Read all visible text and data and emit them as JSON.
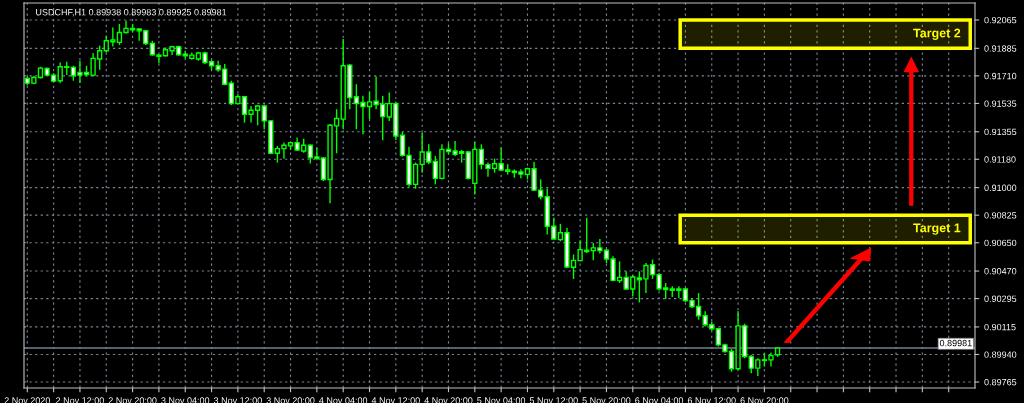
{
  "chart_data": {
    "type": "candlestick",
    "title": "USDCHF,H1 0.89938 0.89983 0.89925 0.89981",
    "color": "#00ff00",
    "grid": true,
    "x": [
      "2020-11-02T04:00",
      "2020-11-02T05:00",
      "2020-11-02T06:00",
      "2020-11-02T07:00",
      "2020-11-02T08:00",
      "2020-11-02T09:00",
      "2020-11-02T10:00",
      "2020-11-02T11:00",
      "2020-11-02T12:00",
      "2020-11-02T13:00",
      "2020-11-02T14:00",
      "2020-11-02T15:00",
      "2020-11-02T16:00",
      "2020-11-02T17:00",
      "2020-11-02T18:00",
      "2020-11-02T19:00",
      "2020-11-02T20:00",
      "2020-11-02T21:00",
      "2020-11-02T22:00",
      "2020-11-02T23:00",
      "2020-11-03T00:00",
      "2020-11-03T01:00",
      "2020-11-03T02:00",
      "2020-11-03T03:00",
      "2020-11-03T04:00",
      "2020-11-03T05:00",
      "2020-11-03T06:00",
      "2020-11-03T07:00",
      "2020-11-03T08:00",
      "2020-11-03T09:00",
      "2020-11-03T10:00",
      "2020-11-03T11:00",
      "2020-11-03T12:00",
      "2020-11-03T13:00",
      "2020-11-03T14:00",
      "2020-11-03T15:00",
      "2020-11-03T16:00",
      "2020-11-03T17:00",
      "2020-11-03T18:00",
      "2020-11-03T19:00",
      "2020-11-03T20:00",
      "2020-11-03T21:00",
      "2020-11-03T22:00",
      "2020-11-03T23:00",
      "2020-11-04T00:00",
      "2020-11-04T01:00",
      "2020-11-04T02:00",
      "2020-11-04T03:00",
      "2020-11-04T04:00",
      "2020-11-04T05:00",
      "2020-11-04T06:00",
      "2020-11-04T07:00",
      "2020-11-04T08:00",
      "2020-11-04T09:00",
      "2020-11-04T10:00",
      "2020-11-04T11:00",
      "2020-11-04T12:00",
      "2020-11-04T13:00",
      "2020-11-04T14:00",
      "2020-11-04T15:00",
      "2020-11-04T16:00",
      "2020-11-04T17:00",
      "2020-11-04T18:00",
      "2020-11-04T19:00",
      "2020-11-04T20:00",
      "2020-11-04T21:00",
      "2020-11-04T22:00",
      "2020-11-04T23:00",
      "2020-11-05T00:00",
      "2020-11-05T01:00",
      "2020-11-05T02:00",
      "2020-11-05T03:00",
      "2020-11-05T04:00",
      "2020-11-05T05:00",
      "2020-11-05T06:00",
      "2020-11-05T07:00",
      "2020-11-05T08:00",
      "2020-11-05T09:00",
      "2020-11-05T10:00",
      "2020-11-05T11:00",
      "2020-11-05T12:00",
      "2020-11-05T13:00",
      "2020-11-05T14:00",
      "2020-11-05T15:00",
      "2020-11-05T16:00",
      "2020-11-05T17:00",
      "2020-11-05T18:00",
      "2020-11-05T19:00",
      "2020-11-05T20:00",
      "2020-11-05T21:00",
      "2020-11-05T22:00",
      "2020-11-05T23:00",
      "2020-11-06T00:00",
      "2020-11-06T01:00",
      "2020-11-06T02:00",
      "2020-11-06T03:00",
      "2020-11-06T04:00",
      "2020-11-06T05:00",
      "2020-11-06T06:00",
      "2020-11-06T07:00",
      "2020-11-06T08:00",
      "2020-11-06T09:00",
      "2020-11-06T10:00",
      "2020-11-06T11:00",
      "2020-11-06T12:00",
      "2020-11-06T13:00",
      "2020-11-06T14:00",
      "2020-11-06T15:00",
      "2020-11-06T16:00",
      "2020-11-06T17:00",
      "2020-11-06T18:00",
      "2020-11-06T19:00",
      "2020-11-06T20:00",
      "2020-11-06T21:00",
      "2020-11-06T22:00"
    ],
    "ohlc": [
      [
        0.91694,
        0.91706,
        0.91651,
        0.91664
      ],
      [
        0.91664,
        0.91711,
        0.91657,
        0.917
      ],
      [
        0.917,
        0.91768,
        0.91694,
        0.91759
      ],
      [
        0.91757,
        0.91764,
        0.91711,
        0.91715
      ],
      [
        0.91715,
        0.91728,
        0.91668,
        0.91677
      ],
      [
        0.91679,
        0.91795,
        0.91664,
        0.91768
      ],
      [
        0.91768,
        0.918,
        0.91715,
        0.91764
      ],
      [
        0.91764,
        0.91774,
        0.91679,
        0.91711
      ],
      [
        0.91732,
        0.91806,
        0.91664,
        0.91715
      ],
      [
        0.91732,
        0.91774,
        0.91706,
        0.91719
      ],
      [
        0.91715,
        0.91855,
        0.91706,
        0.91821
      ],
      [
        0.91817,
        0.91902,
        0.91749,
        0.9187
      ],
      [
        0.9187,
        0.91965,
        0.91859,
        0.91933
      ],
      [
        0.91927,
        0.92018,
        0.91897,
        0.91938
      ],
      [
        0.91923,
        0.9204,
        0.91906,
        0.91986
      ],
      [
        0.91986,
        0.92061,
        0.9198,
        0.92012
      ],
      [
        0.92012,
        0.9204,
        0.91986,
        0.92003
      ],
      [
        0.92008,
        0.92012,
        0.91933,
        0.91997
      ],
      [
        0.91997,
        0.92001,
        0.91906,
        0.91916
      ],
      [
        0.91916,
        0.91933,
        0.91838,
        0.91844
      ],
      [
        0.91842,
        0.91848,
        0.91791,
        0.91834
      ],
      [
        0.91838,
        0.91891,
        0.91834,
        0.91876
      ],
      [
        0.9187,
        0.91902,
        0.91842,
        0.91895
      ],
      [
        0.91895,
        0.91902,
        0.91838,
        0.91844
      ],
      [
        0.91848,
        0.9187,
        0.91821,
        0.91838
      ],
      [
        0.91821,
        0.91859,
        0.91812,
        0.91842
      ],
      [
        0.91817,
        0.91863,
        0.91806,
        0.91855
      ],
      [
        0.91855,
        0.91863,
        0.91785,
        0.91795
      ],
      [
        0.918,
        0.91812,
        0.91749,
        0.91774
      ],
      [
        0.91774,
        0.91806,
        0.91736,
        0.91749
      ],
      [
        0.91753,
        0.91785,
        0.91651,
        0.91657
      ],
      [
        0.91664,
        0.91679,
        0.91524,
        0.91534
      ],
      [
        0.91534,
        0.91594,
        0.9153,
        0.91577
      ],
      [
        0.91577,
        0.91583,
        0.91413,
        0.91466
      ],
      [
        0.91466,
        0.91519,
        0.91413,
        0.91492
      ],
      [
        0.91492,
        0.91526,
        0.91396,
        0.91519
      ],
      [
        0.91519,
        0.91524,
        0.91371,
        0.91424
      ],
      [
        0.91424,
        0.9143,
        0.91212,
        0.91218
      ],
      [
        0.91218,
        0.91265,
        0.91159,
        0.91248
      ],
      [
        0.91248,
        0.91286,
        0.91184,
        0.91269
      ],
      [
        0.91265,
        0.9129,
        0.91239,
        0.91286
      ],
      [
        0.91286,
        0.91318,
        0.91233,
        0.91239
      ],
      [
        0.91233,
        0.91311,
        0.91222,
        0.91269
      ],
      [
        0.91269,
        0.91275,
        0.91154,
        0.9119
      ],
      [
        0.91195,
        0.91254,
        0.9118,
        0.91184
      ],
      [
        0.91188,
        0.91192,
        0.91042,
        0.91052
      ],
      [
        0.91052,
        0.91403,
        0.909,
        0.91396
      ],
      [
        0.91392,
        0.91498,
        0.91218,
        0.91439
      ],
      [
        0.91435,
        0.91944,
        0.91371,
        0.91774
      ],
      [
        0.91778,
        0.91785,
        0.91498,
        0.91572
      ],
      [
        0.91577,
        0.91657,
        0.91371,
        0.91534
      ],
      [
        0.91541,
        0.91583,
        0.91339,
        0.91515
      ],
      [
        0.91515,
        0.91609,
        0.91435,
        0.91545
      ],
      [
        0.91549,
        0.91706,
        0.91498,
        0.91528
      ],
      [
        0.9153,
        0.91583,
        0.91301,
        0.91451
      ],
      [
        0.91449,
        0.91604,
        0.91424,
        0.91534
      ],
      [
        0.91534,
        0.91545,
        0.91303,
        0.91328
      ],
      [
        0.91333,
        0.91354,
        0.91197,
        0.91205
      ],
      [
        0.91205,
        0.9126,
        0.91006,
        0.91021
      ],
      [
        0.91021,
        0.91159,
        0.90993,
        0.91148
      ],
      [
        0.91148,
        0.9135,
        0.91095,
        0.91226
      ],
      [
        0.91226,
        0.91275,
        0.91148,
        0.91163
      ],
      [
        0.91167,
        0.91201,
        0.91021,
        0.91059
      ],
      [
        0.91059,
        0.91275,
        0.91052,
        0.91243
      ],
      [
        0.91243,
        0.91282,
        0.91212,
        0.91229
      ],
      [
        0.91233,
        0.91297,
        0.91201,
        0.91212
      ],
      [
        0.91229,
        0.91239,
        0.91159,
        0.91218
      ],
      [
        0.91226,
        0.91233,
        0.91052,
        0.91059
      ],
      [
        0.91027,
        0.9129,
        0.90957,
        0.91243
      ],
      [
        0.91243,
        0.91275,
        0.91116,
        0.91148
      ],
      [
        0.91146,
        0.91159,
        0.91069,
        0.91122
      ],
      [
        0.91122,
        0.91184,
        0.91095,
        0.91152
      ],
      [
        0.91152,
        0.91254,
        0.91105,
        0.91112
      ],
      [
        0.91112,
        0.91148,
        0.91084,
        0.91103
      ],
      [
        0.91105,
        0.91116,
        0.91063,
        0.91095
      ],
      [
        0.91099,
        0.91116,
        0.91059,
        0.91086
      ],
      [
        0.91084,
        0.91127,
        0.91052,
        0.9112
      ],
      [
        0.9112,
        0.91163,
        0.90978,
        0.90984
      ],
      [
        0.90984,
        0.91052,
        0.90925,
        0.90942
      ],
      [
        0.90942,
        0.90995,
        0.90702,
        0.90755
      ],
      [
        0.90755,
        0.90808,
        0.9067,
        0.90674
      ],
      [
        0.9067,
        0.9077,
        0.90659,
        0.90713
      ],
      [
        0.90713,
        0.90744,
        0.9049,
        0.90496
      ],
      [
        0.90494,
        0.90575,
        0.9042,
        0.90538
      ],
      [
        0.90536,
        0.90666,
        0.90532,
        0.90606
      ],
      [
        0.90602,
        0.90808,
        0.90585,
        0.90594
      ],
      [
        0.906,
        0.90649,
        0.90538,
        0.90617
      ],
      [
        0.90617,
        0.90674,
        0.90581,
        0.906
      ],
      [
        0.90602,
        0.90611,
        0.90521,
        0.90547
      ],
      [
        0.90547,
        0.90564,
        0.90405,
        0.90411
      ],
      [
        0.90409,
        0.90532,
        0.90394,
        0.9043
      ],
      [
        0.9043,
        0.90468,
        0.90352,
        0.90356
      ],
      [
        0.90356,
        0.90447,
        0.90309,
        0.90432
      ],
      [
        0.90426,
        0.90468,
        0.90271,
        0.90415
      ],
      [
        0.9042,
        0.90521,
        0.9033,
        0.90505
      ],
      [
        0.90511,
        0.90543,
        0.9042,
        0.90447
      ],
      [
        0.90447,
        0.90458,
        0.90347,
        0.90358
      ],
      [
        0.90362,
        0.90394,
        0.90292,
        0.90352
      ],
      [
        0.90356,
        0.90373,
        0.90305,
        0.90347
      ],
      [
        0.90356,
        0.90373,
        0.90299,
        0.90347
      ],
      [
        0.90356,
        0.90362,
        0.90273,
        0.90282
      ],
      [
        0.90282,
        0.90299,
        0.90235,
        0.90245
      ],
      [
        0.90245,
        0.9033,
        0.90161,
        0.90186
      ],
      [
        0.90186,
        0.90214,
        0.90118,
        0.90129
      ],
      [
        0.90129,
        0.9015,
        0.90093,
        0.90103
      ],
      [
        0.90103,
        0.90107,
        0.89991,
        0.90001
      ],
      [
        0.90001,
        0.90008,
        0.89952,
        0.89959
      ],
      [
        0.89959,
        0.89974,
        0.89831,
        0.89849
      ],
      [
        0.89849,
        0.90214,
        0.89842,
        0.90122
      ],
      [
        0.90122,
        0.90135,
        0.89916,
        0.89927
      ],
      [
        0.89927,
        0.89937,
        0.89821,
        0.89853
      ],
      [
        0.89853,
        0.89916,
        0.89804,
        0.89906
      ],
      [
        0.89906,
        0.89948,
        0.89863,
        0.89902
      ],
      [
        0.89906,
        0.89952,
        0.89863,
        0.89933
      ],
      [
        0.89938,
        0.89983,
        0.89925,
        0.89981
      ]
    ],
    "xlim": [
      "2020-11-02T03:30",
      "2020-11-08T04:00"
    ],
    "xticks": [
      {
        "value": "2020-11-02T04:00",
        "label": "2 Nov 2020"
      },
      {
        "value": "2020-11-02T08:00",
        "label": null
      },
      {
        "value": "2020-11-02T12:00",
        "label": "2 Nov 12:00"
      },
      {
        "value": "2020-11-02T16:00",
        "label": null
      },
      {
        "value": "2020-11-02T20:00",
        "label": "2 Nov 20:00"
      },
      {
        "value": "2020-11-03T00:00",
        "label": null
      },
      {
        "value": "2020-11-03T04:00",
        "label": "3 Nov 04:00"
      },
      {
        "value": "2020-11-03T08:00",
        "label": null
      },
      {
        "value": "2020-11-03T12:00",
        "label": "3 Nov 12:00"
      },
      {
        "value": "2020-11-03T16:00",
        "label": null
      },
      {
        "value": "2020-11-03T20:00",
        "label": "3 Nov 20:00"
      },
      {
        "value": "2020-11-04T00:00",
        "label": null
      },
      {
        "value": "2020-11-04T04:00",
        "label": "4 Nov 04:00"
      },
      {
        "value": "2020-11-04T08:00",
        "label": null
      },
      {
        "value": "2020-11-04T12:00",
        "label": "4 Nov 12:00"
      },
      {
        "value": "2020-11-04T16:00",
        "label": null
      },
      {
        "value": "2020-11-04T20:00",
        "label": "4 Nov 20:00"
      },
      {
        "value": "2020-11-05T00:00",
        "label": null
      },
      {
        "value": "2020-11-05T04:00",
        "label": "5 Nov 04:00"
      },
      {
        "value": "2020-11-05T08:00",
        "label": null
      },
      {
        "value": "2020-11-05T12:00",
        "label": "5 Nov 12:00"
      },
      {
        "value": "2020-11-05T16:00",
        "label": null
      },
      {
        "value": "2020-11-05T20:00",
        "label": "5 Nov 20:00"
      },
      {
        "value": "2020-11-06T00:00",
        "label": null
      },
      {
        "value": "2020-11-06T04:00",
        "label": "6 Nov 04:00"
      },
      {
        "value": "2020-11-06T08:00",
        "label": null
      },
      {
        "value": "2020-11-06T12:00",
        "label": "6 Nov 12:00"
      },
      {
        "value": "2020-11-06T16:00",
        "label": null
      },
      {
        "value": "2020-11-06T20:00",
        "label": "6 Nov 20:00"
      },
      {
        "value": "2020-11-07T00:00",
        "label": null
      },
      {
        "value": "2020-11-07T04:00",
        "label": null
      },
      {
        "value": "2020-11-07T08:00",
        "label": null
      },
      {
        "value": "2020-11-07T12:00",
        "label": null
      },
      {
        "value": "2020-11-07T16:00",
        "label": null
      },
      {
        "value": "2020-11-07T20:00",
        "label": null
      },
      {
        "value": "2020-11-08T00:00",
        "label": null
      }
    ],
    "ylim": [
      0.89727,
      0.92173
    ],
    "yticks": [
      0.92065,
      0.91885,
      {
        "value": 0.9171,
        "label": "0.91710"
      },
      0.91535,
      0.91355,
      {
        "value": 0.9118,
        "label": "0.91180"
      },
      {
        "value": 0.91,
        "label": "0.91000"
      },
      0.90825,
      {
        "value": 0.9065,
        "label": "0.90650"
      },
      {
        "value": 0.9047,
        "label": "0.90470"
      },
      0.90295,
      0.90115,
      {
        "value": 0.8994,
        "label": "0.89940"
      },
      0.89765
    ],
    "ref_lines": [
      {
        "axis": "y",
        "value": 0.89981,
        "label": "0.89981",
        "color": "#708090"
      }
    ],
    "bands": [
      {
        "axis": "y",
        "from": 0.91885,
        "to": 0.92065,
        "label": "Target 2",
        "color": "#ffff00"
      },
      {
        "axis": "y",
        "from": 0.9065,
        "to": 0.90825,
        "label": "Target 1",
        "color": "#ffff00"
      }
    ]
  }
}
